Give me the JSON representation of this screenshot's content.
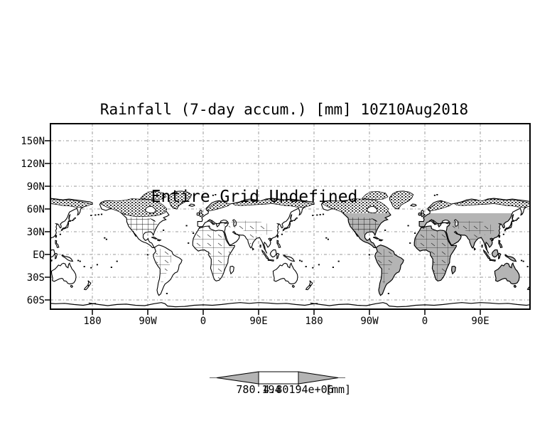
{
  "title": "Rainfall (7-day accum.) [mm] 10Z10Aug2018",
  "overlay_message": "Entire Grid Undefined",
  "axes": {
    "y_labels": [
      "150N",
      "120N",
      "90N",
      "60N",
      "30N",
      "EQ",
      "30S",
      "60S"
    ],
    "x_labels": [
      "180",
      "90W",
      "0",
      "90E",
      "180",
      "90W",
      "0",
      "90E"
    ]
  },
  "colorbar": {
    "min_label": "780.194",
    "max_label": "4.80194e+06",
    "units_label": "[mm]"
  },
  "colors": {
    "background": "#ffffff",
    "outline": "#000000",
    "grid_line": "#999999",
    "land_shade": "#b4b4b4"
  }
}
